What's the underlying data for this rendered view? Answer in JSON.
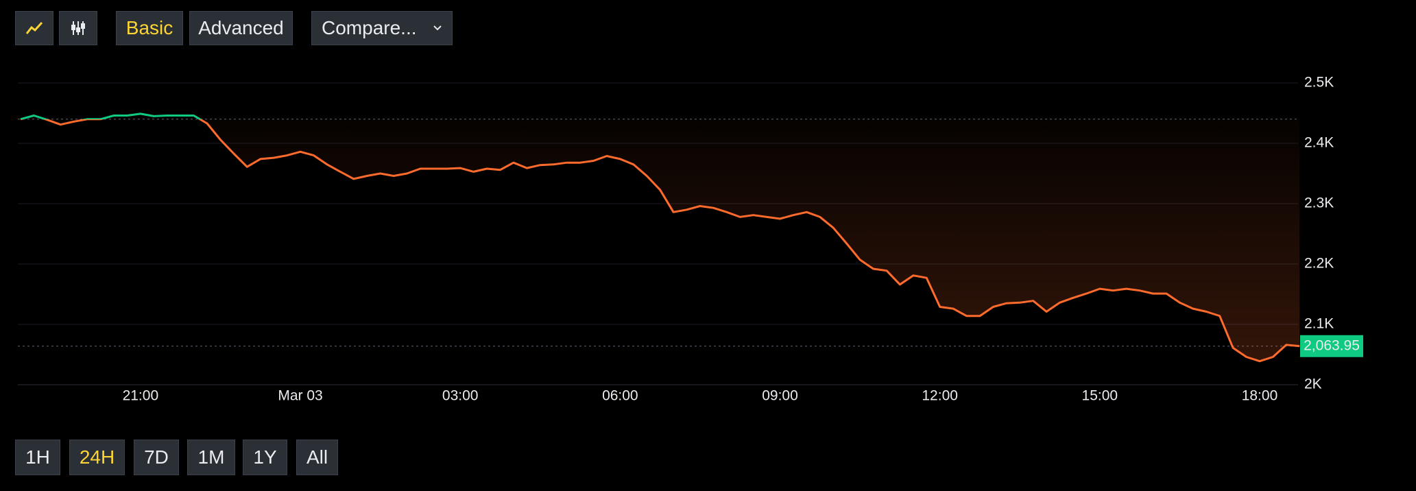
{
  "toolbar": {
    "modes": [
      "Basic",
      "Advanced"
    ],
    "active_mode": 0,
    "compare": "Compare..."
  },
  "ranges": {
    "options": [
      "1H",
      "24H",
      "7D",
      "1M",
      "1Y",
      "All"
    ],
    "active": 1
  },
  "chart_data": {
    "type": "line",
    "categories": [
      null,
      null,
      null,
      null,
      null,
      null,
      null,
      null,
      null,
      "21:00",
      null,
      null,
      null,
      null,
      null,
      null,
      null,
      null,
      null,
      null,
      null,
      "Mar 03",
      null,
      null,
      null,
      null,
      null,
      null,
      null,
      null,
      null,
      null,
      null,
      "03:00",
      null,
      null,
      null,
      null,
      null,
      null,
      null,
      null,
      null,
      null,
      null,
      "06:00",
      null,
      null,
      null,
      null,
      null,
      null,
      null,
      null,
      null,
      null,
      null,
      "09:00",
      null,
      null,
      null,
      null,
      null,
      null,
      null,
      null,
      null,
      null,
      null,
      "12:00",
      null,
      null,
      null,
      null,
      null,
      null,
      null,
      null,
      null,
      null,
      null,
      "15:00",
      null,
      null,
      null,
      null,
      null,
      null,
      null,
      null,
      null,
      null,
      null,
      "18:00",
      null,
      null,
      null
    ],
    "series": [
      {
        "color": "#ff6b2c",
        "up_color": "#0ecb81",
        "values": [
          2440,
          2446,
          2439,
          2431,
          2436,
          2440,
          2440,
          2446,
          2446,
          2449,
          2445,
          2446,
          2446,
          2446,
          2433,
          2406,
          2383,
          2361,
          2374,
          2376,
          2380,
          2386,
          2380,
          2365,
          2353,
          2341,
          2346,
          2350,
          2346,
          2350,
          2358,
          2358,
          2358,
          2359,
          2353,
          2358,
          2356,
          2368,
          2359,
          2364,
          2365,
          2368,
          2368,
          2371,
          2379,
          2374,
          2365,
          2346,
          2323,
          2286,
          2290,
          2296,
          2293,
          2286,
          2278,
          2281,
          2278,
          2275,
          2281,
          2286,
          2278,
          2260,
          2234,
          2207,
          2192,
          2189,
          2166,
          2181,
          2177,
          2129,
          2126,
          2114,
          2114,
          2129,
          2135,
          2136,
          2139,
          2121,
          2136,
          2144,
          2151,
          2159,
          2156,
          2159,
          2156,
          2151,
          2151,
          2136,
          2126,
          2121,
          2114,
          2061,
          2046,
          2039,
          2046,
          2066,
          2064
        ]
      }
    ],
    "baseline": 2440,
    "last_price": {
      "value": 2063.95,
      "label": "2,063.95"
    },
    "last_price_color": "#0ecb81",
    "ylim": [
      2000,
      2500
    ],
    "yticks": [
      {
        "value": 2000,
        "label": "2K"
      },
      {
        "value": 2100,
        "label": "2.1K"
      },
      {
        "value": 2200,
        "label": "2.2K"
      },
      {
        "value": 2300,
        "label": "2.3K"
      },
      {
        "value": 2400,
        "label": "2.4K"
      },
      {
        "value": 2500,
        "label": "2.5K"
      }
    ],
    "grid": true
  }
}
